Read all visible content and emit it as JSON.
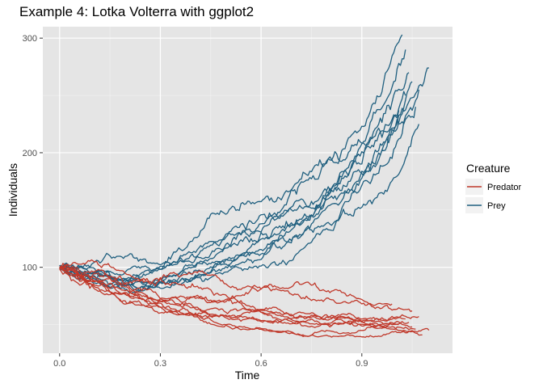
{
  "chart_data": {
    "type": "line",
    "title": "Example 4: Lotka Volterra with ggplot2",
    "xlabel": "Time",
    "ylabel": "Individuals",
    "xlim": [
      -0.05,
      1.17
    ],
    "ylim": [
      25,
      310
    ],
    "x_ticks": [
      0.0,
      0.3,
      0.6,
      0.9
    ],
    "x_tick_labels": [
      "0.0",
      "0.3",
      "0.6",
      "0.9"
    ],
    "y_ticks": [
      100,
      200,
      300
    ],
    "y_tick_labels": [
      "100",
      "200",
      "300"
    ],
    "x_minor_ticks": [
      0.15,
      0.45,
      0.75,
      1.05
    ],
    "y_minor_ticks": [
      50,
      150,
      250
    ],
    "grid": true,
    "panel_background": "#e5e5e5",
    "legend": {
      "title": "Creature",
      "position": "right",
      "entries": [
        {
          "label": "Predator",
          "color": "#c0392b"
        },
        {
          "label": "Prey",
          "color": "#1f5f7f"
        }
      ]
    },
    "series": [
      {
        "group": "Prey",
        "color": "#1f5f7f",
        "end_x": 1.02,
        "end_y": 303
      },
      {
        "group": "Prey",
        "color": "#1f5f7f",
        "end_x": 1.03,
        "end_y": 290
      },
      {
        "group": "Prey",
        "color": "#1f5f7f",
        "end_x": 1.04,
        "end_y": 270
      },
      {
        "group": "Prey",
        "color": "#1f5f7f",
        "end_x": 1.1,
        "end_y": 274
      },
      {
        "group": "Prey",
        "color": "#1f5f7f",
        "end_x": 1.05,
        "end_y": 262
      },
      {
        "group": "Prey",
        "color": "#1f5f7f",
        "end_x": 1.07,
        "end_y": 255
      },
      {
        "group": "Prey",
        "color": "#1f5f7f",
        "end_x": 1.03,
        "end_y": 250
      },
      {
        "group": "Prey",
        "color": "#1f5f7f",
        "end_x": 1.06,
        "end_y": 240
      },
      {
        "group": "Prey",
        "color": "#1f5f7f",
        "end_x": 1.01,
        "end_y": 237
      },
      {
        "group": "Prey",
        "color": "#1f5f7f",
        "end_x": 1.07,
        "end_y": 225
      },
      {
        "group": "Predator",
        "color": "#c0392b",
        "end_x": 0.99,
        "end_y": 68
      },
      {
        "group": "Predator",
        "color": "#c0392b",
        "end_x": 1.05,
        "end_y": 62
      },
      {
        "group": "Predator",
        "color": "#c0392b",
        "end_x": 1.07,
        "end_y": 57
      },
      {
        "group": "Predator",
        "color": "#c0392b",
        "end_x": 1.03,
        "end_y": 55
      },
      {
        "group": "Predator",
        "color": "#c0392b",
        "end_x": 1.04,
        "end_y": 52
      },
      {
        "group": "Predator",
        "color": "#c0392b",
        "end_x": 1.01,
        "end_y": 50
      },
      {
        "group": "Predator",
        "color": "#c0392b",
        "end_x": 1.05,
        "end_y": 48
      },
      {
        "group": "Predator",
        "color": "#c0392b",
        "end_x": 1.06,
        "end_y": 46
      },
      {
        "group": "Predator",
        "color": "#c0392b",
        "end_x": 1.1,
        "end_y": 45
      },
      {
        "group": "Predator",
        "color": "#c0392b",
        "end_x": 1.08,
        "end_y": 41
      }
    ]
  }
}
